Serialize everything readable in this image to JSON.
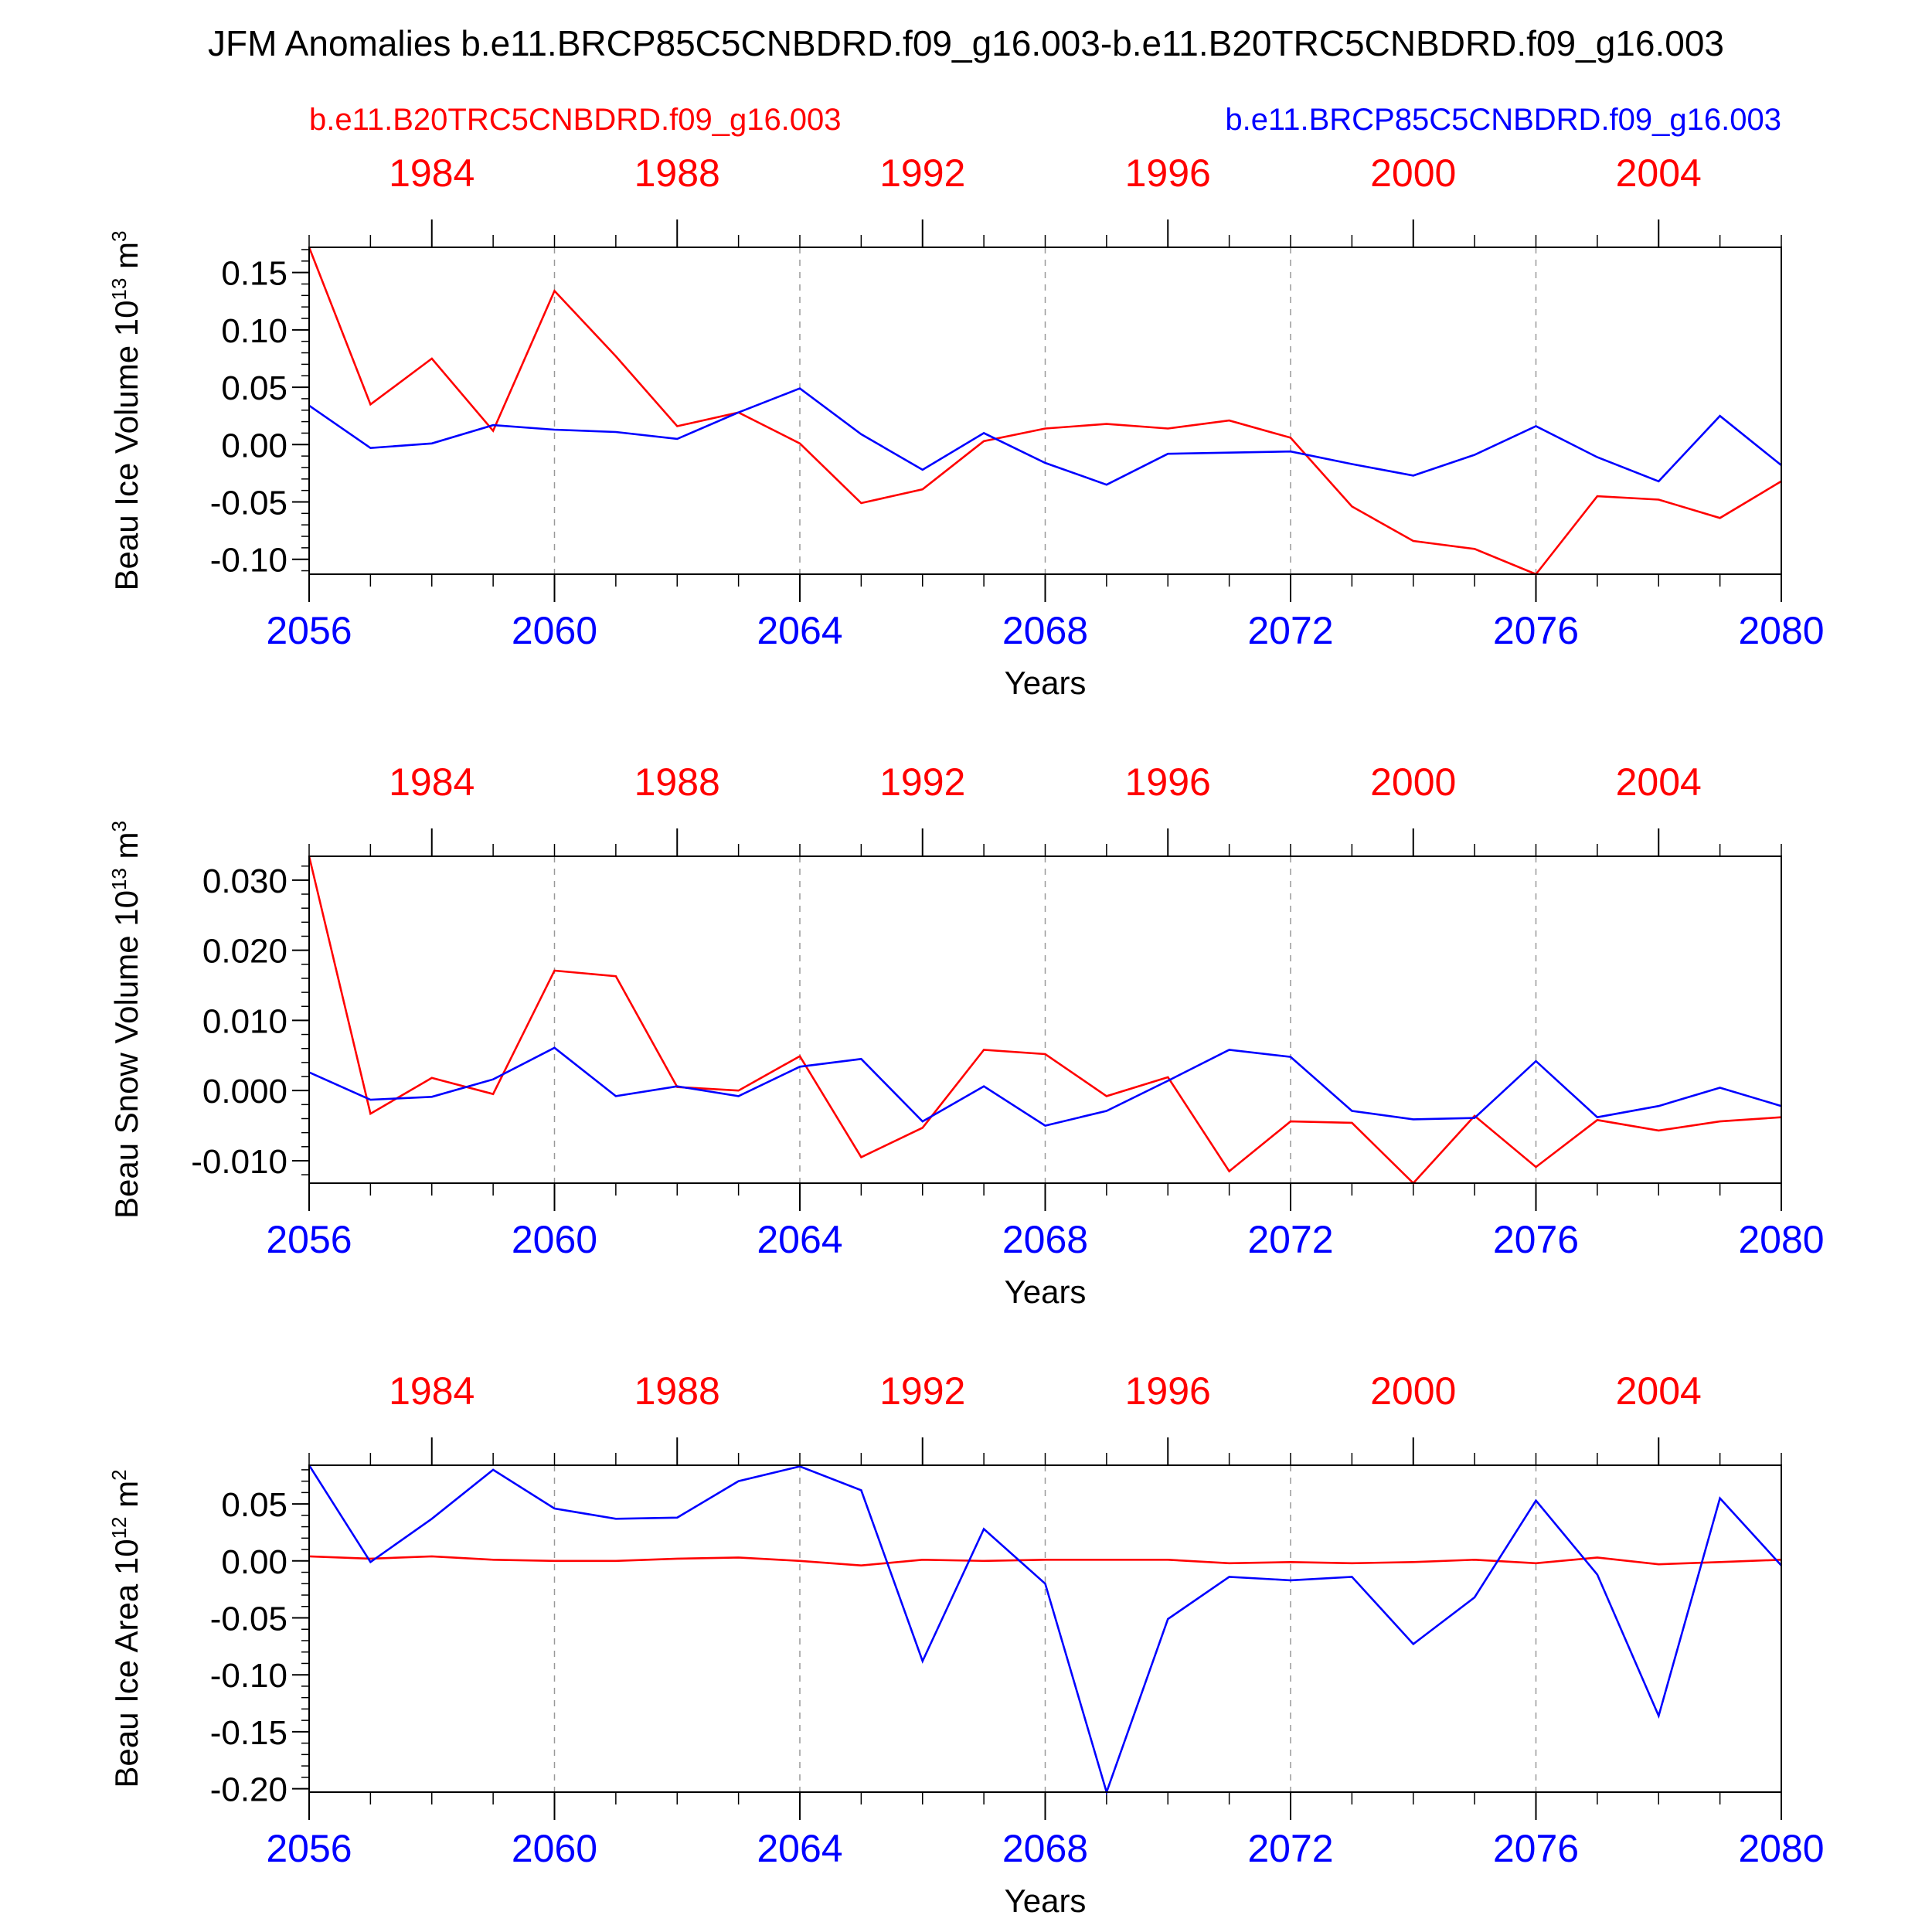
{
  "title": "JFM Anomalies b.e11.BRCP85C5CNBDRD.f09_g16.003-b.e11.B20TRC5CNBDRD.f09_g16.003",
  "legend": {
    "red_label": "b.e11.B20TRC5CNBDRD.f09_g16.003",
    "blue_label": "b.e11.BRCP85C5CNBDRD.f09_g16.003"
  },
  "colors": {
    "historical": "#ff0000",
    "future": "#0000ff",
    "axis": "#000000",
    "grid": "#999999"
  },
  "chart_data": [
    {
      "type": "line",
      "ylabel": "Beau Ice Volume 10",
      "ylabel_sup": "13",
      "ylabel_unit": " m",
      "ylabel_unit_sup": "3",
      "xlabel": "Years",
      "ylim": [
        -0.113,
        0.172
      ],
      "yticks": [
        0.15,
        0.1,
        0.05,
        0.0,
        -0.05,
        -0.1
      ],
      "ytick_labels": [
        "0.15",
        "0.10",
        "0.05",
        "0.00",
        "-0.05",
        "-0.10"
      ],
      "x_future": [
        2056,
        2057,
        2058,
        2059,
        2060,
        2061,
        2062,
        2063,
        2064,
        2065,
        2066,
        2067,
        2068,
        2069,
        2070,
        2071,
        2072,
        2073,
        2074,
        2075,
        2076,
        2077,
        2078,
        2079,
        2080
      ],
      "x_historical_ticks": [
        "1984",
        "1988",
        "1992",
        "1996",
        "2000",
        "2004"
      ],
      "x_future_ticks": [
        "2056",
        "2060",
        "2064",
        "2068",
        "2072",
        "2076",
        "2080"
      ],
      "series": [
        {
          "name": "b.e11.B20TRC5CNBDRD.f09_g16.003",
          "color": "red",
          "values": [
            0.172,
            0.035,
            0.075,
            0.012,
            0.134,
            0.077,
            0.016,
            0.028,
            0.001,
            -0.051,
            -0.039,
            0.003,
            0.014,
            0.018,
            0.014,
            0.021,
            0.006,
            -0.054,
            -0.084,
            -0.091,
            -0.113,
            -0.045,
            -0.048,
            -0.064,
            -0.032
          ]
        },
        {
          "name": "b.e11.BRCP85C5CNBDRD.f09_g16.003",
          "color": "blue",
          "values": [
            0.034,
            -0.003,
            0.001,
            0.017,
            0.013,
            0.011,
            0.005,
            0.028,
            0.049,
            0.009,
            -0.022,
            0.01,
            -0.016,
            -0.035,
            -0.008,
            -0.007,
            -0.006,
            -0.017,
            -0.027,
            -0.009,
            0.016,
            -0.011,
            -0.032,
            0.025,
            -0.018
          ]
        }
      ]
    },
    {
      "type": "line",
      "ylabel": "Beau Snow Volume 10",
      "ylabel_sup": "13",
      "ylabel_unit": " m",
      "ylabel_unit_sup": "3",
      "xlabel": "Years",
      "ylim": [
        -0.0132,
        0.0334
      ],
      "yticks": [
        0.03,
        0.02,
        0.01,
        0.0,
        -0.01
      ],
      "ytick_labels": [
        "0.030",
        "0.020",
        "0.010",
        "0.000",
        "-0.010"
      ],
      "x_future": [
        2056,
        2057,
        2058,
        2059,
        2060,
        2061,
        2062,
        2063,
        2064,
        2065,
        2066,
        2067,
        2068,
        2069,
        2070,
        2071,
        2072,
        2073,
        2074,
        2075,
        2076,
        2077,
        2078,
        2079,
        2080
      ],
      "x_historical_ticks": [
        "1984",
        "1988",
        "1992",
        "1996",
        "2000",
        "2004"
      ],
      "x_future_ticks": [
        "2056",
        "2060",
        "2064",
        "2068",
        "2072",
        "2076",
        "2080"
      ],
      "series": [
        {
          "name": "b.e11.B20TRC5CNBDRD.f09_g16.003",
          "color": "red",
          "values": [
            0.0334,
            -0.0033,
            0.0018,
            -0.0005,
            0.0171,
            0.0163,
            0.0005,
            0.0,
            0.0049,
            -0.0095,
            -0.0053,
            0.0058,
            0.0052,
            -0.0008,
            0.0019,
            -0.0115,
            -0.0044,
            -0.0046,
            -0.0132,
            -0.0036,
            -0.0109,
            -0.0042,
            -0.0057,
            -0.0044,
            -0.0038
          ]
        },
        {
          "name": "b.e11.BRCP85C5CNBDRD.f09_g16.003",
          "color": "blue",
          "values": [
            0.0026,
            -0.0013,
            -0.0009,
            0.0016,
            0.0061,
            -0.0008,
            0.0006,
            -0.0008,
            0.0034,
            0.0045,
            -0.0044,
            0.0006,
            -0.005,
            -0.0029,
            0.0014,
            0.0058,
            0.0048,
            -0.0029,
            -0.0041,
            -0.0039,
            0.0042,
            -0.0038,
            -0.0022,
            0.0004,
            -0.0022
          ]
        }
      ]
    },
    {
      "type": "line",
      "ylabel": "Beau Ice Area 10",
      "ylabel_sup": "12",
      "ylabel_unit": " m",
      "ylabel_unit_sup": "2",
      "xlabel": "Years",
      "ylim": [
        -0.203,
        0.084
      ],
      "yticks": [
        0.05,
        0.0,
        -0.05,
        -0.1,
        -0.15,
        -0.2
      ],
      "ytick_labels": [
        "0.05",
        "0.00",
        "-0.05",
        "-0.10",
        "-0.15",
        "-0.20"
      ],
      "x_future": [
        2056,
        2057,
        2058,
        2059,
        2060,
        2061,
        2062,
        2063,
        2064,
        2065,
        2066,
        2067,
        2068,
        2069,
        2070,
        2071,
        2072,
        2073,
        2074,
        2075,
        2076,
        2077,
        2078,
        2079,
        2080
      ],
      "x_historical_ticks": [
        "1984",
        "1988",
        "1992",
        "1996",
        "2000",
        "2004"
      ],
      "x_future_ticks": [
        "2056",
        "2060",
        "2064",
        "2068",
        "2072",
        "2076",
        "2080"
      ],
      "series": [
        {
          "name": "b.e11.B20TRC5CNBDRD.f09_g16.003",
          "color": "red",
          "values": [
            0.004,
            0.002,
            0.004,
            0.001,
            0.0,
            0.0,
            0.002,
            0.003,
            0.0,
            -0.004,
            0.001,
            0.0,
            0.001,
            0.001,
            0.001,
            -0.002,
            -0.001,
            -0.002,
            -0.001,
            0.001,
            -0.002,
            0.003,
            -0.003,
            -0.001,
            0.001
          ]
        },
        {
          "name": "b.e11.BRCP85C5CNBDRD.f09_g16.003",
          "color": "blue",
          "values": [
            0.084,
            -0.001,
            0.037,
            0.08,
            0.046,
            0.037,
            0.038,
            0.07,
            0.083,
            0.062,
            -0.088,
            0.028,
            -0.02,
            -0.203,
            -0.051,
            -0.014,
            -0.017,
            -0.014,
            -0.073,
            -0.032,
            0.053,
            -0.012,
            -0.136,
            0.055,
            -0.004
          ]
        }
      ]
    }
  ]
}
